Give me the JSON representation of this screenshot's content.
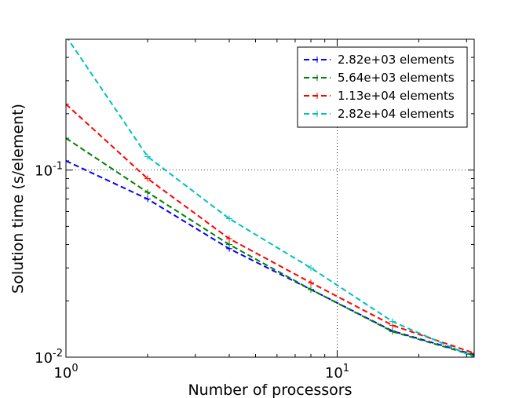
{
  "chart_data": {
    "type": "line",
    "xscale": "log",
    "yscale": "log",
    "xlim": [
      1,
      32
    ],
    "ylim": [
      0.01,
      0.5
    ],
    "xlabel": "Number of processors",
    "ylabel": "Solution time (s/element)",
    "x_tick_labels": [
      {
        "value": 1,
        "base": "10",
        "exp": "0"
      },
      {
        "value": 10,
        "base": "10",
        "exp": "1"
      }
    ],
    "y_tick_labels": [
      {
        "value": 0.01,
        "base": "10",
        "exp": "-2"
      },
      {
        "value": 0.1,
        "base": "10",
        "exp": "-1"
      }
    ],
    "grid": true,
    "legend_position": "top-right",
    "series": [
      {
        "name": "2.82e+03 elements",
        "color": "#0000ff",
        "x": [
          1,
          2,
          4,
          8,
          16,
          32
        ],
        "y": [
          0.112,
          0.07,
          0.038,
          0.023,
          0.0138,
          0.0103
        ]
      },
      {
        "name": "5.64e+03 elements",
        "color": "#008000",
        "x": [
          1,
          2,
          4,
          8,
          16,
          32
        ],
        "y": [
          0.148,
          0.076,
          0.04,
          0.023,
          0.0137,
          0.0102
        ]
      },
      {
        "name": "1.13e+04 elements",
        "color": "#ff0000",
        "x": [
          1,
          2,
          4,
          8,
          16,
          32
        ],
        "y": [
          0.225,
          0.09,
          0.043,
          0.025,
          0.0148,
          0.0105
        ]
      },
      {
        "name": "2.82e+04 elements",
        "color": "#00bfbf",
        "x": [
          1,
          2,
          4,
          8,
          16,
          32
        ],
        "y": [
          0.52,
          0.118,
          0.055,
          0.03,
          0.0155,
          0.01
        ]
      }
    ]
  }
}
